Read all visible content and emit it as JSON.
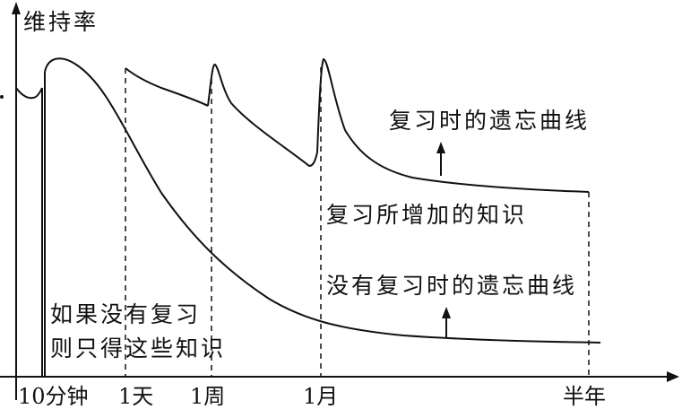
{
  "y_axis_label": "维持率",
  "x_ticks": [
    "10分钟",
    "1天",
    "1周",
    "1月",
    "半年"
  ],
  "annotations": {
    "review_curve": "复习时的遗忘曲线",
    "added_knowledge": "复习所增加的知识",
    "no_review_curve": "没有复习时的遗忘曲线",
    "no_review_note_line1": "如果没有复习",
    "no_review_note_line2": "则只得这些知识"
  },
  "colors": {
    "ink": "#111111",
    "background": "#ffffff"
  }
}
